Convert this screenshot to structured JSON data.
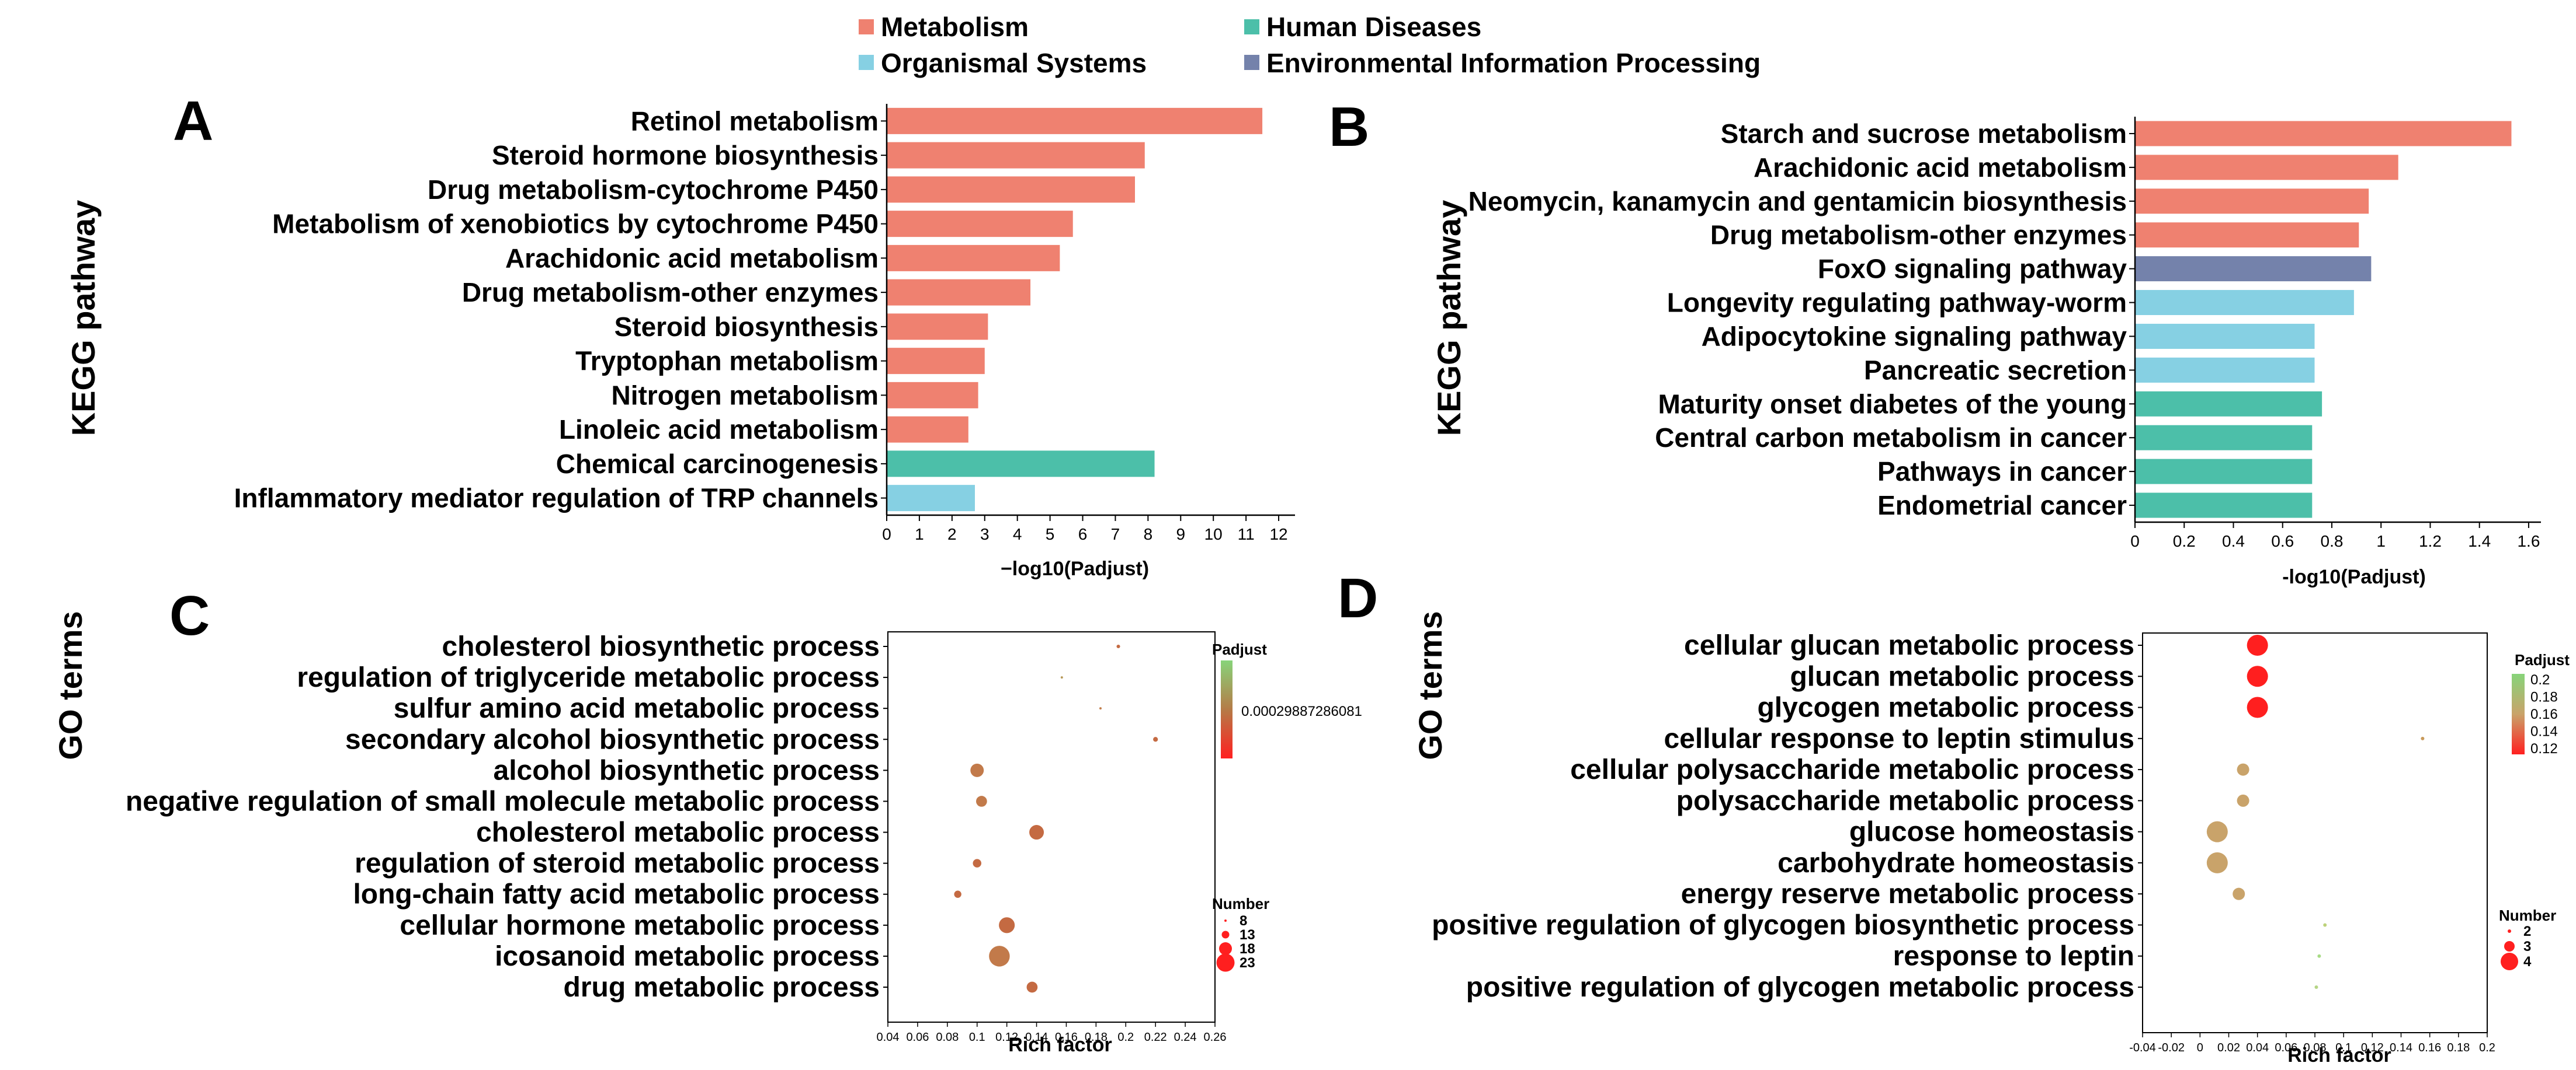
{
  "legend": {
    "items": [
      {
        "label": "Metabolism",
        "color": "#ef8170"
      },
      {
        "label": "Human Diseases",
        "color": "#4cbfa9"
      },
      {
        "label": "Organismal Systems",
        "color": "#86d0e3"
      },
      {
        "label": "Environmental Information Processing",
        "color": "#7482ab"
      }
    ]
  },
  "chart_data": [
    {
      "panel": "A",
      "type": "bar",
      "orientation": "horizontal",
      "ylabel": "KEGG pathway",
      "xlabel": "−log10(Padjust)",
      "xlim": [
        0,
        12.5
      ],
      "xticks": [
        "0",
        "1",
        "2",
        "3",
        "4",
        "5",
        "6",
        "7",
        "8",
        "9",
        "10",
        "11",
        "12"
      ],
      "categories": [
        "Retinol metabolism",
        "Steroid hormone biosynthesis",
        "Drug metabolism-cytochrome P450",
        "Metabolism of xenobiotics by cytochrome P450",
        "Arachidonic acid metabolism",
        "Drug metabolism-other enzymes",
        "Steroid biosynthesis",
        "Tryptophan metabolism",
        "Nitrogen metabolism",
        "Linoleic acid metabolism",
        "Chemical carcinogenesis",
        "Inflammatory mediator regulation of TRP channels"
      ],
      "values": [
        11.5,
        7.9,
        7.6,
        5.7,
        5.3,
        4.4,
        3.1,
        3.0,
        2.8,
        2.5,
        8.2,
        2.7
      ],
      "groups": [
        "Metabolism",
        "Metabolism",
        "Metabolism",
        "Metabolism",
        "Metabolism",
        "Metabolism",
        "Metabolism",
        "Metabolism",
        "Metabolism",
        "Metabolism",
        "Human Diseases",
        "Organismal Systems"
      ]
    },
    {
      "panel": "B",
      "type": "bar",
      "orientation": "horizontal",
      "ylabel": "KEGG pathway",
      "xlabel": "-log10(Padjust)",
      "xlim": [
        0,
        1.65
      ],
      "xticks": [
        "0",
        "0.2",
        "0.4",
        "0.6",
        "0.8",
        "1",
        "1.2",
        "1.4",
        "1.6"
      ],
      "categories": [
        "Starch and sucrose metabolism",
        "Arachidonic acid metabolism",
        "Neomycin, kanamycin and gentamicin biosynthesis",
        "Drug metabolism-other enzymes",
        "FoxO signaling pathway",
        "Longevity regulating pathway-worm",
        "Adipocytokine signaling pathway",
        "Pancreatic secretion",
        "Maturity onset diabetes of the young",
        "Central carbon metabolism in cancer",
        "Pathways in cancer",
        "Endometrial cancer"
      ],
      "values": [
        1.53,
        1.07,
        0.95,
        0.91,
        0.96,
        0.89,
        0.73,
        0.73,
        0.76,
        0.72,
        0.72,
        0.72
      ],
      "groups": [
        "Metabolism",
        "Metabolism",
        "Metabolism",
        "Metabolism",
        "Environmental Information Processing",
        "Organismal Systems",
        "Organismal Systems",
        "Organismal Systems",
        "Human Diseases",
        "Human Diseases",
        "Human Diseases",
        "Human Diseases"
      ]
    },
    {
      "panel": "C",
      "type": "scatter",
      "ylabel": "GO terms",
      "xlabel": "Rich factor",
      "xlim": [
        0.04,
        0.26
      ],
      "xticks": [
        "0.04",
        "0.06",
        "0.08",
        "0.1",
        "0.12",
        "0.14",
        "0.16",
        "0.18",
        "0.2",
        "0.22",
        "0.24",
        "0.26"
      ],
      "categories": [
        "cholesterol biosynthetic process",
        "regulation of triglyceride metabolic process",
        "sulfur amino acid metabolic process",
        "secondary alcohol biosynthetic process",
        "alcohol biosynthetic process",
        "negative regulation of small molecule metabolic process",
        "cholesterol metabolic process",
        "regulation of steroid metabolic process",
        "long-chain fatty acid metabolic process",
        "cellular hormone metabolic process",
        "icosanoid metabolic process",
        "drug metabolic process"
      ],
      "x": [
        0.195,
        0.157,
        0.183,
        0.22,
        0.1,
        0.103,
        0.14,
        0.1,
        0.087,
        0.12,
        0.115,
        0.137
      ],
      "size": [
        9,
        8,
        8,
        10,
        17,
        15,
        18,
        13,
        12,
        19,
        23,
        15
      ],
      "color": [
        "#c46a42",
        "#b89a5a",
        "#c27e4c",
        "#c46a42",
        "#c27a4a",
        "#c27a4a",
        "#c46a42",
        "#c46a42",
        "#c46a42",
        "#c46a42",
        "#c27a4a",
        "#c46a42"
      ],
      "colorbar": {
        "title": "Padjust",
        "label": "0.00029887286081",
        "colors": [
          "#87d47a",
          "#b57b47",
          "#ff2020"
        ]
      },
      "size_legend": {
        "title": "Number",
        "values": [
          "8",
          "13",
          "18",
          "23"
        ]
      }
    },
    {
      "panel": "D",
      "type": "scatter",
      "ylabel": "GO terms",
      "xlabel": "Rich factor",
      "xlim": [
        -0.04,
        0.2
      ],
      "xticks": [
        "-0.04",
        "-0.02",
        "0",
        "0.02",
        "0.04",
        "0.06",
        "0.08",
        "0.1",
        "0.12",
        "0.14",
        "0.16",
        "0.18",
        "0.2"
      ],
      "categories": [
        "cellular glucan metabolic process",
        "glucan metabolic process",
        "glycogen metabolic process",
        "cellular response to leptin stimulus",
        "cellular polysaccharide metabolic process",
        "polysaccharide metabolic process",
        "glucose homeostasis",
        "carbohydrate homeostasis",
        "energy reserve metabolic process",
        "positive regulation of glycogen biosynthetic process",
        "response to leptin",
        "positive regulation of glycogen metabolic process"
      ],
      "x": [
        0.04,
        0.04,
        0.04,
        0.155,
        0.03,
        0.03,
        0.012,
        0.012,
        0.027,
        0.087,
        0.083,
        0.081
      ],
      "size": [
        4,
        4,
        4,
        2,
        3,
        3,
        4,
        4,
        3,
        2,
        2,
        2
      ],
      "color": [
        "#ff1f1f",
        "#ff1f1f",
        "#ff1f1f",
        "#c89a5a",
        "#c9a36a",
        "#c9a36a",
        "#c9a36a",
        "#c9a36a",
        "#c9a36a",
        "#bdd27a",
        "#a8db86",
        "#b5d585"
      ],
      "colorbar": {
        "title": "Padjust",
        "ticks": [
          "0.2",
          "0.18",
          "0.16",
          "0.14",
          "0.12"
        ],
        "colors": [
          "#87d47a",
          "#c9a36a",
          "#ff2020"
        ]
      },
      "size_legend": {
        "title": "Number",
        "values": [
          "2",
          "3",
          "4"
        ]
      }
    }
  ]
}
